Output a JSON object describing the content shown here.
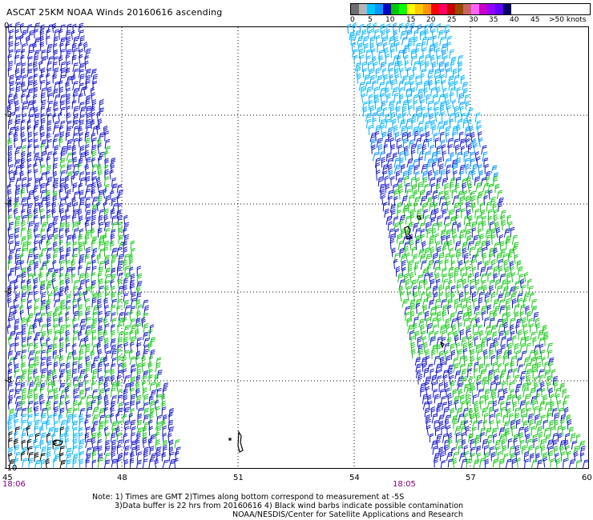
{
  "title": "ASCAT 25KM NOAA Winds 20160616 ascending",
  "legend": {
    "labels": [
      "0",
      "5",
      "10",
      "15",
      "20",
      "25",
      "30",
      "35",
      "40",
      "45",
      ">50 knots"
    ],
    "colors": [
      "#6e6e6e",
      "#b4b4b4",
      "#00c8ff",
      "#0096ff",
      "#0000c8",
      "#00c800",
      "#00ff00",
      "#ffff00",
      "#ffc800",
      "#ff9600",
      "#ff0000",
      "#ff0064",
      "#c80000",
      "#964b00",
      "#c86464",
      "#ff64ff",
      "#c800c8",
      "#9600ff",
      "#6400ff",
      "#000064"
    ]
  },
  "map": {
    "lon_labels": [
      "45",
      "48",
      "51",
      "54",
      "57",
      "60"
    ],
    "lat_labels": [
      "0",
      "-2",
      "-4",
      "-6",
      "-8",
      "-10"
    ],
    "time_labels": [
      "18:06",
      "18:05"
    ],
    "barb_colors": {
      "light_blue": "#00b4ff",
      "sky": "#0096ff",
      "blue": "#1414c8",
      "green": "#14c814",
      "black": "#000000"
    }
  },
  "notes": [
    "Note: 1) Times are GMT 2)Times along bottom correspond to measurement at -5S",
    "3)Data buffer is 22 hrs from 20160616 4) Black wind barbs indicate possible contamination",
    "NOAA/NESDIS/Center for Satellite Applications and Research"
  ]
}
